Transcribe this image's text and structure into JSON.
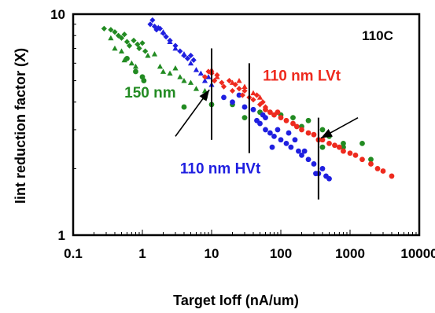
{
  "chart_data": {
    "type": "scatter",
    "title": "",
    "xlabel": "Target Ioff (nA/um)",
    "ylabel": "Iint reduction factor (X)",
    "x_scale": "log",
    "y_scale": "log",
    "xlim": [
      0.1,
      10000
    ],
    "ylim": [
      1,
      10
    ],
    "x_ticks": [
      "0.1",
      "1",
      "10",
      "100",
      "1000",
      "10000"
    ],
    "y_ticks": [
      "1",
      "10"
    ],
    "grid": false,
    "corner_label": "110C",
    "colors": {
      "green": "#228B22",
      "blue": "#1F1FE0",
      "red": "#EE2A1E"
    },
    "series_groups": [
      {
        "label": "150 nm",
        "color": "#228B22",
        "marker_sets": [
          {
            "marker": "diamond",
            "points": [
              [
                0.28,
                8.6
              ],
              [
                0.35,
                8.5
              ],
              [
                0.4,
                8.3
              ],
              [
                0.45,
                8.0
              ],
              [
                0.5,
                7.8
              ],
              [
                0.55,
                8.1
              ],
              [
                0.6,
                7.5
              ],
              [
                0.65,
                7.2
              ],
              [
                0.75,
                7.6
              ],
              [
                0.85,
                7.3
              ],
              [
                0.9,
                7.0
              ],
              [
                1.0,
                7.4
              ],
              [
                1.1,
                6.8
              ]
            ]
          },
          {
            "marker": "triangle",
            "points": [
              [
                0.35,
                7.8
              ],
              [
                0.4,
                7.0
              ],
              [
                0.5,
                6.8
              ],
              [
                0.55,
                6.2
              ],
              [
                0.7,
                6.0
              ],
              [
                0.8,
                5.8
              ],
              [
                1.2,
                6.5
              ],
              [
                1.5,
                6.6
              ],
              [
                1.8,
                5.8
              ],
              [
                2.0,
                5.5
              ],
              [
                2.5,
                5.4
              ],
              [
                3.0,
                5.7
              ],
              [
                3.5,
                5.2
              ],
              [
                4.0,
                5.0
              ],
              [
                5.0,
                4.9
              ],
              [
                6.0,
                4.6
              ],
              [
                8.0,
                4.5
              ]
            ]
          },
          {
            "marker": "circle",
            "points": [
              [
                0.6,
                6.3
              ],
              [
                0.8,
                5.5
              ],
              [
                1.0,
                5.2
              ],
              [
                1.05,
                5.0
              ],
              [
                4.0,
                3.8
              ],
              [
                8.0,
                4.2
              ],
              [
                10.0,
                3.9
              ],
              [
                20.0,
                3.9
              ],
              [
                30.0,
                3.4
              ],
              [
                50.0,
                3.6
              ],
              [
                100.0,
                3.5
              ],
              [
                150.0,
                3.4
              ],
              [
                250.0,
                3.3
              ],
              [
                400.0,
                3.0
              ],
              [
                400.0,
                2.5
              ],
              [
                500.0,
                2.8
              ],
              [
                800.0,
                2.6
              ],
              [
                1500.0,
                2.6
              ],
              [
                2000.0,
                2.2
              ],
              [
                800.0,
                2.5
              ],
              [
                200.0,
                3.1
              ]
            ]
          }
        ]
      },
      {
        "label": "110 nm HVt",
        "color": "#1F1FE0",
        "marker_sets": [
          {
            "marker": "diamond",
            "points": [
              [
                1.3,
                9.0
              ],
              [
                1.4,
                9.4
              ],
              [
                1.5,
                8.8
              ],
              [
                1.6,
                8.5
              ],
              [
                1.8,
                8.6
              ],
              [
                2.0,
                8.2
              ],
              [
                2.2,
                7.9
              ],
              [
                2.5,
                7.6
              ],
              [
                3.0,
                7.2
              ],
              [
                3.5,
                6.8
              ],
              [
                4.0,
                6.5
              ],
              [
                4.5,
                6.3
              ],
              [
                5.0,
                6.5
              ],
              [
                5.5,
                6.2
              ]
            ]
          },
          {
            "marker": "triangle",
            "points": [
              [
                1.7,
                8.7
              ],
              [
                2.0,
                8.3
              ],
              [
                2.5,
                7.5
              ],
              [
                3.0,
                7.0
              ],
              [
                4.0,
                6.6
              ],
              [
                5.0,
                6.0
              ],
              [
                6.0,
                5.6
              ],
              [
                7.0,
                5.4
              ],
              [
                8.0,
                5.0
              ],
              [
                9.0,
                5.2
              ],
              [
                10.0,
                4.8
              ]
            ]
          },
          {
            "marker": "circle",
            "points": [
              [
                15.0,
                4.2
              ],
              [
                20.0,
                4.0
              ],
              [
                25.0,
                4.3
              ],
              [
                30.0,
                3.8
              ],
              [
                40.0,
                3.7
              ],
              [
                45.0,
                3.3
              ],
              [
                50.0,
                3.2
              ],
              [
                55.0,
                3.5
              ],
              [
                60.0,
                3.0
              ],
              [
                70.0,
                2.9
              ],
              [
                80.0,
                2.8
              ],
              [
                90.0,
                3.0
              ],
              [
                100.0,
                2.7
              ],
              [
                120.0,
                2.6
              ],
              [
                140.0,
                2.5
              ],
              [
                160.0,
                2.7
              ],
              [
                180.0,
                2.4
              ],
              [
                200.0,
                2.3
              ],
              [
                250.0,
                2.2
              ],
              [
                300.0,
                2.1
              ],
              [
                320.0,
                1.9
              ],
              [
                350.0,
                1.9
              ],
              [
                400.0,
                2.0
              ],
              [
                450.0,
                1.85
              ],
              [
                500.0,
                1.8
              ],
              [
                60.0,
                3.4
              ],
              [
                75.0,
                2.5
              ],
              [
                130.0,
                2.9
              ],
              [
                220.0,
                2.4
              ]
            ]
          }
        ]
      },
      {
        "label": "110 nm LVt",
        "color": "#EE2A1E",
        "marker_sets": [
          {
            "marker": "diamond",
            "points": [
              [
                8.0,
                5.2
              ],
              [
                9.0,
                5.5
              ],
              [
                10.0,
                5.4
              ],
              [
                11.0,
                5.0
              ],
              [
                12.0,
                5.3
              ],
              [
                14.0,
                4.9
              ],
              [
                15.0,
                4.7
              ],
              [
                18.0,
                5.0
              ],
              [
                20.0,
                4.5
              ],
              [
                22.0,
                4.8
              ],
              [
                25.0,
                4.6
              ],
              [
                28.0,
                4.3
              ],
              [
                30.0,
                4.5
              ],
              [
                35.0,
                4.2
              ],
              [
                40.0,
                4.1
              ],
              [
                45.0,
                4.3
              ],
              [
                50.0,
                3.9
              ],
              [
                55.0,
                4.0
              ],
              [
                60.0,
                3.8
              ]
            ]
          },
          {
            "marker": "triangle",
            "points": [
              [
                10.0,
                5.6
              ],
              [
                12.0,
                5.2
              ],
              [
                20.0,
                4.9
              ],
              [
                25.0,
                5.0
              ],
              [
                30.0,
                4.7
              ],
              [
                40.0,
                4.4
              ],
              [
                50.0,
                4.2
              ]
            ]
          },
          {
            "marker": "circle",
            "points": [
              [
                60.0,
                3.7
              ],
              [
                70.0,
                3.6
              ],
              [
                80.0,
                3.5
              ],
              [
                90.0,
                3.6
              ],
              [
                100.0,
                3.4
              ],
              [
                120.0,
                3.3
              ],
              [
                150.0,
                3.2
              ],
              [
                170.0,
                3.1
              ],
              [
                200.0,
                3.0
              ],
              [
                250.0,
                2.9
              ],
              [
                300.0,
                2.85
              ],
              [
                350.0,
                2.7
              ],
              [
                400.0,
                2.7
              ],
              [
                500.0,
                2.6
              ],
              [
                600.0,
                2.55
              ],
              [
                700.0,
                2.5
              ],
              [
                800.0,
                2.4
              ],
              [
                1000.0,
                2.35
              ],
              [
                1200.0,
                2.3
              ],
              [
                1500.0,
                2.2
              ],
              [
                2000.0,
                2.1
              ],
              [
                2500.0,
                2.0
              ],
              [
                3000.0,
                1.95
              ],
              [
                4000.0,
                1.85
              ]
            ]
          }
        ]
      }
    ],
    "vertical_bars": [
      {
        "x": 10.0,
        "y_low": 2.7,
        "y_high": 7.0
      },
      {
        "x": 35.0,
        "y_low": 2.35,
        "y_high": 6.0
      },
      {
        "x": 350.0,
        "y_low": 1.45,
        "y_high": 3.4
      }
    ],
    "arrows": [
      {
        "from": [
          3.0,
          2.8
        ],
        "to": [
          9.3,
          4.55
        ]
      },
      {
        "from": [
          1300.0,
          3.4
        ],
        "to": [
          380.0,
          2.75
        ]
      }
    ],
    "annotations": [
      {
        "text": "150 nm",
        "color": "#228B22",
        "x": 0.55,
        "y": 4.2
      },
      {
        "text": "110 nm LVt",
        "color": "#EE2A1E",
        "x": 55.0,
        "y": 5.0
      },
      {
        "text": "110 nm HVt",
        "color": "#1F1FE0",
        "x": 3.5,
        "y": 1.9
      }
    ]
  }
}
